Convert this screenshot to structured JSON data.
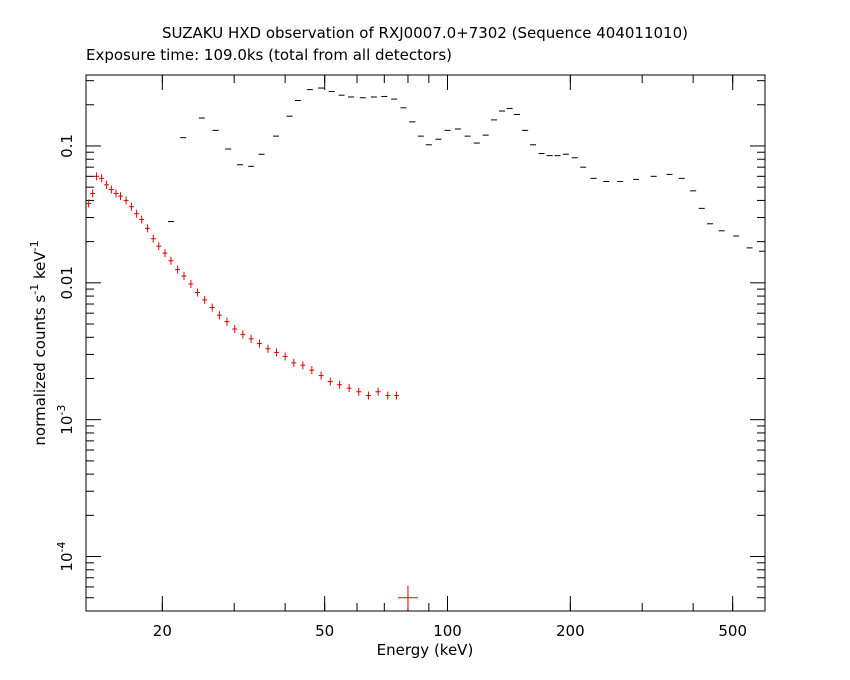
{
  "chart_data": {
    "type": "scatter",
    "title": "SUZAKU HXD observation of RXJ0007.0+7302 (Sequence 404011010)",
    "subtitle": "Exposure time: 109.0ks (total from all detectors)",
    "xlabel": "Energy (keV)",
    "ylabel": "normalized counts s",
    "ylabel_exp1": "-1",
    "ylabel_unit": " keV",
    "ylabel_exp2": "-1",
    "x_scale": "log",
    "y_scale": "log",
    "xlim": [
      13,
      600
    ],
    "ylim": [
      4e-05,
      0.33
    ],
    "x_ticks": [
      {
        "value": 20,
        "label": "20"
      },
      {
        "value": 50,
        "label": "50"
      },
      {
        "value": 100,
        "label": "100"
      },
      {
        "value": 200,
        "label": "200"
      },
      {
        "value": 500,
        "label": "500"
      }
    ],
    "y_ticks": [
      {
        "value": 0.1,
        "label": "0.1",
        "base": "",
        "exp": ""
      },
      {
        "value": 0.01,
        "label": "0.01",
        "base": "",
        "exp": ""
      },
      {
        "value": 0.001,
        "label": "",
        "base": "10",
        "exp": "-3"
      },
      {
        "value": 0.0001,
        "label": "",
        "base": "10",
        "exp": "-4"
      }
    ],
    "grid": false,
    "series": [
      {
        "color": "#000000",
        "points": [
          [
            21,
            0.028
          ],
          [
            22.5,
            0.115
          ],
          [
            25,
            0.16
          ],
          [
            27,
            0.13
          ],
          [
            29,
            0.095
          ],
          [
            31,
            0.073
          ],
          [
            33,
            0.071
          ],
          [
            35,
            0.087
          ],
          [
            38,
            0.118
          ],
          [
            41,
            0.165
          ],
          [
            43,
            0.215
          ],
          [
            46,
            0.258
          ],
          [
            49,
            0.265
          ],
          [
            52,
            0.25
          ],
          [
            55,
            0.235
          ],
          [
            58,
            0.228
          ],
          [
            62,
            0.225
          ],
          [
            66,
            0.228
          ],
          [
            70,
            0.23
          ],
          [
            74,
            0.22
          ],
          [
            78,
            0.19
          ],
          [
            82,
            0.15
          ],
          [
            86,
            0.118
          ],
          [
            90,
            0.102
          ],
          [
            95,
            0.112
          ],
          [
            100,
            0.13
          ],
          [
            106,
            0.133
          ],
          [
            112,
            0.118
          ],
          [
            118,
            0.105
          ],
          [
            124,
            0.12
          ],
          [
            130,
            0.155
          ],
          [
            136,
            0.18
          ],
          [
            142,
            0.188
          ],
          [
            148,
            0.17
          ],
          [
            155,
            0.13
          ],
          [
            162,
            0.102
          ],
          [
            170,
            0.088
          ],
          [
            178,
            0.085
          ],
          [
            186,
            0.085
          ],
          [
            195,
            0.087
          ],
          [
            205,
            0.082
          ],
          [
            215,
            0.07
          ],
          [
            228,
            0.058
          ],
          [
            245,
            0.055
          ],
          [
            265,
            0.055
          ],
          [
            290,
            0.057
          ],
          [
            320,
            0.06
          ],
          [
            350,
            0.062
          ],
          [
            375,
            0.058
          ],
          [
            400,
            0.047
          ],
          [
            420,
            0.035
          ],
          [
            440,
            0.027
          ],
          [
            470,
            0.024
          ],
          [
            510,
            0.022
          ],
          [
            550,
            0.018
          ],
          [
            590,
            0.017
          ]
        ]
      },
      {
        "color": "#e00000",
        "points": [
          [
            13.2,
            0.038
          ],
          [
            13.5,
            0.045
          ],
          [
            13.8,
            0.06
          ],
          [
            14.2,
            0.058
          ],
          [
            14.6,
            0.052
          ],
          [
            15,
            0.048
          ],
          [
            15.4,
            0.045
          ],
          [
            15.8,
            0.043
          ],
          [
            16.3,
            0.04
          ],
          [
            16.8,
            0.036
          ],
          [
            17.3,
            0.032
          ],
          [
            17.8,
            0.029
          ],
          [
            18.4,
            0.025
          ],
          [
            19,
            0.021
          ],
          [
            19.6,
            0.0185
          ],
          [
            20.3,
            0.0165
          ],
          [
            21,
            0.0145
          ],
          [
            21.8,
            0.0125
          ],
          [
            22.6,
            0.0112
          ],
          [
            23.5,
            0.0098
          ],
          [
            24.4,
            0.0085
          ],
          [
            25.4,
            0.0075
          ],
          [
            26.5,
            0.0066
          ],
          [
            27.6,
            0.0058
          ],
          [
            28.8,
            0.0052
          ],
          [
            30.1,
            0.0046
          ],
          [
            31.5,
            0.0042
          ],
          [
            33,
            0.0039
          ],
          [
            34.6,
            0.0036
          ],
          [
            36.3,
            0.0033
          ],
          [
            38.1,
            0.0031
          ],
          [
            40,
            0.0029
          ],
          [
            42,
            0.0026
          ],
          [
            44.2,
            0.0025
          ],
          [
            46.5,
            0.0023
          ],
          [
            49,
            0.0021
          ],
          [
            51.6,
            0.0019
          ],
          [
            54.4,
            0.0018
          ],
          [
            57.4,
            0.0017
          ],
          [
            60.6,
            0.0016
          ],
          [
            64,
            0.0015
          ],
          [
            67.6,
            0.0016
          ],
          [
            71.4,
            0.0015
          ],
          [
            75,
            0.0015
          ],
          [
            80,
            5e-05
          ]
        ]
      }
    ]
  }
}
